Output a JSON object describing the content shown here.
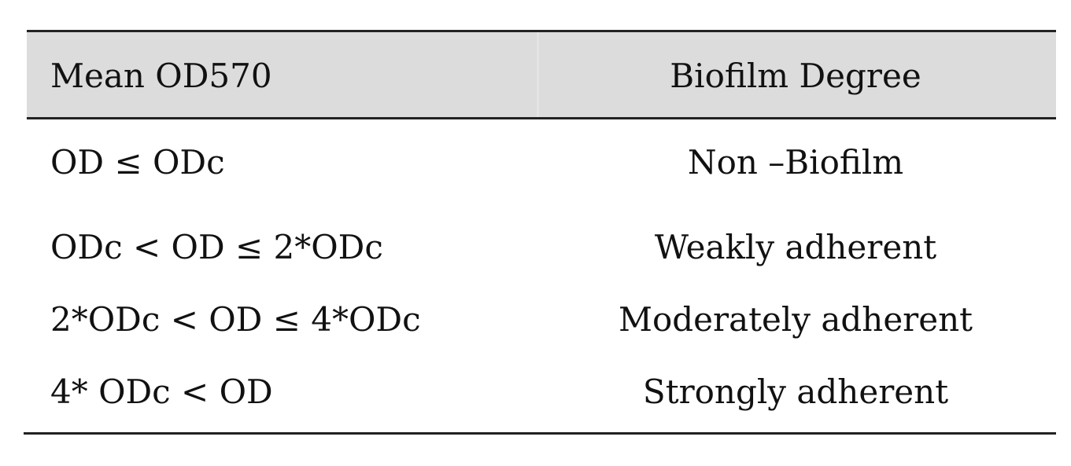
{
  "table": {
    "headers": {
      "col1": "Mean OD570",
      "col2": "Biofilm Degree"
    },
    "rows": [
      {
        "od": "OD ≤ ODc",
        "degree": "Non –Biofilm"
      },
      {
        "od": "ODc < OD ≤ 2*ODc",
        "degree": "Weakly adherent"
      },
      {
        "od": "2*ODc < OD ≤ 4*ODc",
        "degree": "Moderately adherent"
      },
      {
        "od": "4* ODc < OD",
        "degree": "Strongly adherent"
      }
    ]
  }
}
